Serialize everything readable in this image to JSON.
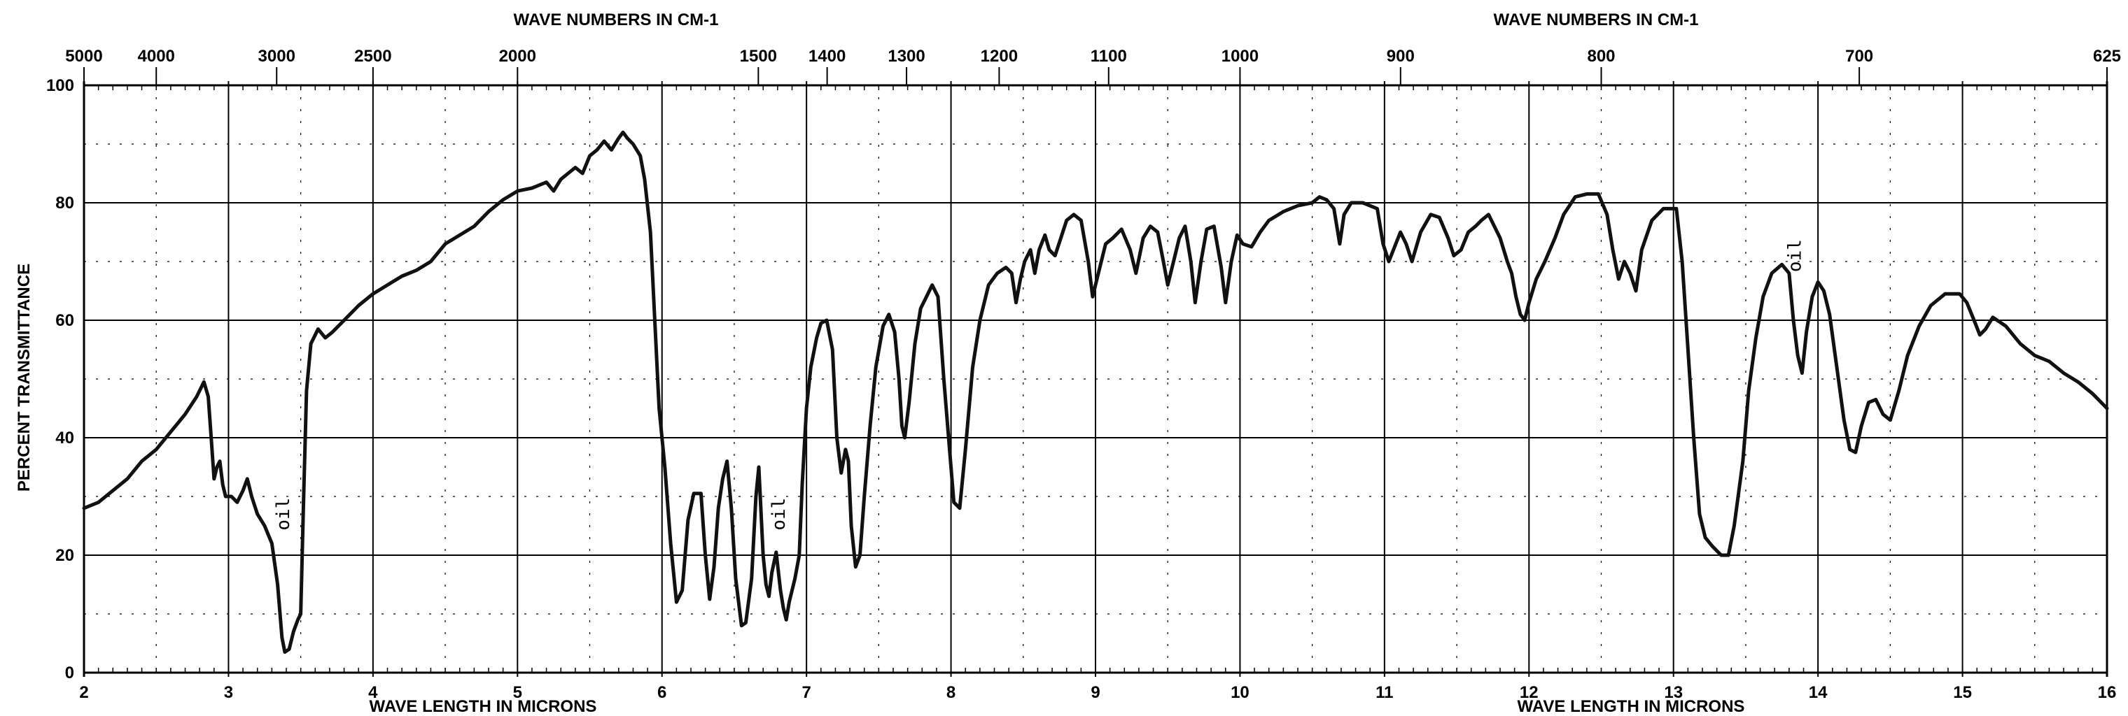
{
  "chart_data": {
    "type": "line",
    "ylabel": "PERCENT TRANSMITTANCE",
    "top_axis_title": "WAVE NUMBERS IN CM-1",
    "bottom_axis_title": "WAVE LENGTH IN MICRONS",
    "xlim": [
      2,
      16
    ],
    "ylim": [
      0,
      100
    ],
    "grid": true,
    "x_ticks": [
      2,
      3,
      4,
      5,
      6,
      7,
      8,
      9,
      10,
      11,
      12,
      13,
      14,
      15,
      16
    ],
    "x_tick_labels": [
      "2",
      "3",
      "4",
      "5",
      "6",
      "7",
      "8",
      "9",
      "10",
      "11",
      "12",
      "13",
      "14",
      "15",
      "16"
    ],
    "y_ticks": [
      0,
      20,
      40,
      60,
      80,
      100
    ],
    "y_tick_labels": [
      "0",
      "20",
      "40",
      "60",
      "80",
      "100"
    ],
    "top_ticks": [
      {
        "label": "5000",
        "wavenumber": 5000
      },
      {
        "label": "4000",
        "wavenumber": 4000
      },
      {
        "label": "3000",
        "wavenumber": 3000
      },
      {
        "label": "2500",
        "wavenumber": 2500
      },
      {
        "label": "2000",
        "wavenumber": 2000
      },
      {
        "label": "1500",
        "wavenumber": 1500
      },
      {
        "label": "1400",
        "wavenumber": 1400
      },
      {
        "label": "1300",
        "wavenumber": 1300
      },
      {
        "label": "1200",
        "wavenumber": 1200
      },
      {
        "label": "1100",
        "wavenumber": 1100
      },
      {
        "label": "1000",
        "wavenumber": 1000
      },
      {
        "label": "900",
        "wavenumber": 900
      },
      {
        "label": "800",
        "wavenumber": 800
      },
      {
        "label": "700",
        "wavenumber": 700
      },
      {
        "label": "625",
        "wavenumber": 625
      }
    ],
    "annotations": [
      {
        "text": "oil",
        "x": 3.42,
        "y": 27
      },
      {
        "text": "oil",
        "x": 6.85,
        "y": 27
      },
      {
        "text": "oil",
        "x": 13.88,
        "y": 71
      }
    ],
    "series": [
      {
        "points": [
          [
            2.0,
            28
          ],
          [
            2.1,
            29
          ],
          [
            2.2,
            31
          ],
          [
            2.3,
            33
          ],
          [
            2.4,
            36
          ],
          [
            2.5,
            38
          ],
          [
            2.6,
            41
          ],
          [
            2.7,
            44
          ],
          [
            2.78,
            47
          ],
          [
            2.83,
            49.5
          ],
          [
            2.86,
            47
          ],
          [
            2.88,
            40
          ],
          [
            2.9,
            33
          ],
          [
            2.92,
            35
          ],
          [
            2.94,
            36
          ],
          [
            2.96,
            32
          ],
          [
            2.98,
            30
          ],
          [
            3.02,
            30
          ],
          [
            3.06,
            29
          ],
          [
            3.1,
            31
          ],
          [
            3.13,
            33
          ],
          [
            3.16,
            30
          ],
          [
            3.2,
            27
          ],
          [
            3.25,
            25
          ],
          [
            3.3,
            22
          ],
          [
            3.34,
            15
          ],
          [
            3.37,
            6
          ],
          [
            3.39,
            3.5
          ],
          [
            3.42,
            4
          ],
          [
            3.45,
            7
          ],
          [
            3.48,
            9
          ],
          [
            3.5,
            10
          ],
          [
            3.52,
            30
          ],
          [
            3.54,
            48
          ],
          [
            3.57,
            56
          ],
          [
            3.62,
            58.5
          ],
          [
            3.67,
            57
          ],
          [
            3.72,
            58
          ],
          [
            3.8,
            60
          ],
          [
            3.9,
            62.5
          ],
          [
            4.0,
            64.5
          ],
          [
            4.1,
            66
          ],
          [
            4.2,
            67.5
          ],
          [
            4.3,
            68.5
          ],
          [
            4.4,
            70
          ],
          [
            4.5,
            73
          ],
          [
            4.6,
            74.5
          ],
          [
            4.7,
            76
          ],
          [
            4.8,
            78.5
          ],
          [
            4.9,
            80.5
          ],
          [
            5.0,
            82
          ],
          [
            5.1,
            82.5
          ],
          [
            5.2,
            83.5
          ],
          [
            5.25,
            82
          ],
          [
            5.3,
            84
          ],
          [
            5.35,
            85
          ],
          [
            5.4,
            86
          ],
          [
            5.45,
            85
          ],
          [
            5.5,
            88
          ],
          [
            5.55,
            89
          ],
          [
            5.6,
            90.5
          ],
          [
            5.65,
            89
          ],
          [
            5.7,
            91
          ],
          [
            5.73,
            92
          ],
          [
            5.76,
            91
          ],
          [
            5.8,
            90
          ],
          [
            5.85,
            88
          ],
          [
            5.88,
            84
          ],
          [
            5.92,
            75
          ],
          [
            5.95,
            60
          ],
          [
            5.98,
            45
          ],
          [
            6.02,
            35
          ],
          [
            6.06,
            22
          ],
          [
            6.1,
            12
          ],
          [
            6.14,
            14
          ],
          [
            6.18,
            26
          ],
          [
            6.22,
            30.5
          ],
          [
            6.27,
            30.5
          ],
          [
            6.3,
            20
          ],
          [
            6.33,
            12.5
          ],
          [
            6.36,
            18
          ],
          [
            6.39,
            28
          ],
          [
            6.42,
            33
          ],
          [
            6.45,
            36
          ],
          [
            6.48,
            28
          ],
          [
            6.51,
            16
          ],
          [
            6.55,
            8
          ],
          [
            6.58,
            8.5
          ],
          [
            6.62,
            16
          ],
          [
            6.65,
            30
          ],
          [
            6.67,
            35
          ],
          [
            6.7,
            20
          ],
          [
            6.72,
            15
          ],
          [
            6.74,
            13
          ],
          [
            6.76,
            17
          ],
          [
            6.79,
            20.5
          ],
          [
            6.82,
            14
          ],
          [
            6.84,
            11
          ],
          [
            6.86,
            9
          ],
          [
            6.88,
            12
          ],
          [
            6.92,
            16
          ],
          [
            6.95,
            20
          ],
          [
            6.97,
            32
          ],
          [
            7.0,
            45
          ],
          [
            7.03,
            52
          ],
          [
            7.07,
            57
          ],
          [
            7.1,
            59.5
          ],
          [
            7.14,
            60
          ],
          [
            7.18,
            55
          ],
          [
            7.21,
            40
          ],
          [
            7.24,
            34
          ],
          [
            7.27,
            38
          ],
          [
            7.29,
            36
          ],
          [
            7.31,
            25
          ],
          [
            7.34,
            18
          ],
          [
            7.37,
            20
          ],
          [
            7.4,
            30
          ],
          [
            7.44,
            42
          ],
          [
            7.48,
            52
          ],
          [
            7.53,
            59
          ],
          [
            7.57,
            61
          ],
          [
            7.61,
            58
          ],
          [
            7.64,
            50
          ],
          [
            7.66,
            42
          ],
          [
            7.68,
            40
          ],
          [
            7.71,
            46
          ],
          [
            7.75,
            56
          ],
          [
            7.79,
            62
          ],
          [
            7.83,
            64
          ],
          [
            7.87,
            66
          ],
          [
            7.91,
            64
          ],
          [
            7.95,
            50
          ],
          [
            7.99,
            38
          ],
          [
            8.02,
            29
          ],
          [
            8.06,
            28
          ],
          [
            8.1,
            38
          ],
          [
            8.15,
            52
          ],
          [
            8.2,
            60
          ],
          [
            8.26,
            66
          ],
          [
            8.32,
            68
          ],
          [
            8.38,
            69
          ],
          [
            8.42,
            68
          ],
          [
            8.45,
            63
          ],
          [
            8.48,
            67
          ],
          [
            8.51,
            70
          ],
          [
            8.55,
            72
          ],
          [
            8.58,
            68
          ],
          [
            8.61,
            72
          ],
          [
            8.65,
            74.5
          ],
          [
            8.68,
            72
          ],
          [
            8.72,
            71
          ],
          [
            8.76,
            74
          ],
          [
            8.8,
            77
          ],
          [
            8.85,
            78
          ],
          [
            8.9,
            77
          ],
          [
            8.95,
            70
          ],
          [
            8.98,
            64
          ],
          [
            9.02,
            68
          ],
          [
            9.07,
            73
          ],
          [
            9.12,
            74
          ],
          [
            9.18,
            75.5
          ],
          [
            9.24,
            72
          ],
          [
            9.28,
            68
          ],
          [
            9.33,
            74
          ],
          [
            9.38,
            76
          ],
          [
            9.43,
            75
          ],
          [
            9.47,
            70
          ],
          [
            9.5,
            66
          ],
          [
            9.54,
            70
          ],
          [
            9.58,
            74
          ],
          [
            9.62,
            76
          ],
          [
            9.66,
            70
          ],
          [
            9.69,
            63
          ],
          [
            9.73,
            70
          ],
          [
            9.77,
            75.5
          ],
          [
            9.82,
            76
          ],
          [
            9.87,
            69
          ],
          [
            9.9,
            63
          ],
          [
            9.94,
            70
          ],
          [
            9.98,
            74.5
          ],
          [
            10.02,
            73
          ],
          [
            10.08,
            72.5
          ],
          [
            10.14,
            75
          ],
          [
            10.2,
            77
          ],
          [
            10.3,
            78.5
          ],
          [
            10.4,
            79.5
          ],
          [
            10.5,
            80
          ],
          [
            10.55,
            81
          ],
          [
            10.6,
            80.5
          ],
          [
            10.65,
            79
          ],
          [
            10.69,
            73
          ],
          [
            10.72,
            78
          ],
          [
            10.77,
            80
          ],
          [
            10.85,
            80
          ],
          [
            10.95,
            79
          ],
          [
            10.99,
            73
          ],
          [
            11.03,
            70
          ],
          [
            11.07,
            72.5
          ],
          [
            11.11,
            75
          ],
          [
            11.15,
            73
          ],
          [
            11.19,
            70
          ],
          [
            11.25,
            75
          ],
          [
            11.32,
            78
          ],
          [
            11.38,
            77.5
          ],
          [
            11.44,
            74
          ],
          [
            11.48,
            71
          ],
          [
            11.53,
            72
          ],
          [
            11.58,
            75
          ],
          [
            11.63,
            76
          ],
          [
            11.67,
            77
          ],
          [
            11.72,
            78
          ],
          [
            11.8,
            74
          ],
          [
            11.85,
            70
          ],
          [
            11.88,
            68
          ],
          [
            11.91,
            64
          ],
          [
            11.94,
            61
          ],
          [
            11.97,
            60
          ],
          [
            12.0,
            63
          ],
          [
            12.05,
            67
          ],
          [
            12.11,
            70
          ],
          [
            12.18,
            74
          ],
          [
            12.24,
            78
          ],
          [
            12.32,
            81
          ],
          [
            12.4,
            81.5
          ],
          [
            12.48,
            81.5
          ],
          [
            12.54,
            78
          ],
          [
            12.58,
            72
          ],
          [
            12.62,
            67
          ],
          [
            12.66,
            70
          ],
          [
            12.7,
            68
          ],
          [
            12.74,
            65
          ],
          [
            12.78,
            72
          ],
          [
            12.85,
            77
          ],
          [
            12.93,
            79
          ],
          [
            13.02,
            79
          ],
          [
            13.06,
            70
          ],
          [
            13.1,
            55
          ],
          [
            13.14,
            40
          ],
          [
            13.18,
            27
          ],
          [
            13.22,
            23
          ],
          [
            13.27,
            21.5
          ],
          [
            13.33,
            20
          ],
          [
            13.38,
            20
          ],
          [
            13.42,
            25
          ],
          [
            13.48,
            36
          ],
          [
            13.52,
            48
          ],
          [
            13.57,
            57
          ],
          [
            13.62,
            64
          ],
          [
            13.68,
            68
          ],
          [
            13.75,
            69.5
          ],
          [
            13.8,
            68
          ],
          [
            13.83,
            60
          ],
          [
            13.86,
            54
          ],
          [
            13.89,
            51
          ],
          [
            13.92,
            58
          ],
          [
            13.96,
            64
          ],
          [
            14.0,
            66.5
          ],
          [
            14.04,
            65
          ],
          [
            14.08,
            61
          ],
          [
            14.13,
            52
          ],
          [
            14.18,
            43
          ],
          [
            14.22,
            38
          ],
          [
            14.26,
            37.5
          ],
          [
            14.3,
            42
          ],
          [
            14.35,
            46
          ],
          [
            14.4,
            46.5
          ],
          [
            14.45,
            44
          ],
          [
            14.5,
            43
          ],
          [
            14.56,
            48
          ],
          [
            14.62,
            54
          ],
          [
            14.7,
            59
          ],
          [
            14.78,
            62.5
          ],
          [
            14.88,
            64.5
          ],
          [
            14.98,
            64.5
          ],
          [
            15.03,
            63
          ],
          [
            15.08,
            60
          ],
          [
            15.12,
            57.5
          ],
          [
            15.16,
            58.5
          ],
          [
            15.21,
            60.5
          ],
          [
            15.3,
            59
          ],
          [
            15.4,
            56
          ],
          [
            15.5,
            54
          ],
          [
            15.6,
            53
          ],
          [
            15.7,
            51
          ],
          [
            15.8,
            49.5
          ],
          [
            15.9,
            47.5
          ],
          [
            16.0,
            45
          ]
        ]
      }
    ]
  }
}
